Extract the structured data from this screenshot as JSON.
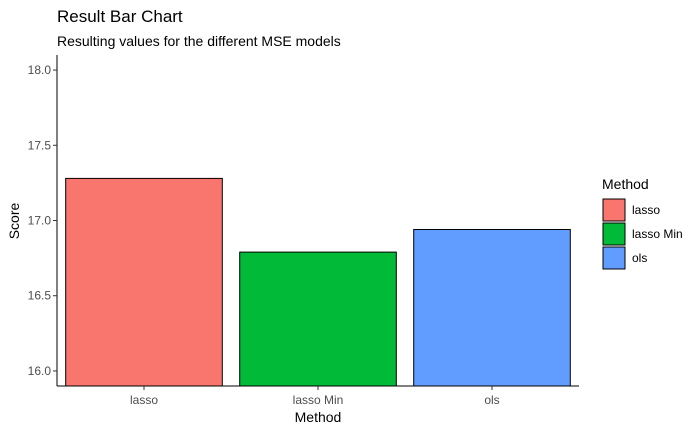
{
  "chart_data": {
    "type": "bar",
    "title": "Result Bar Chart",
    "subtitle": "Resulting values for the different MSE models",
    "xlabel": "Method",
    "ylabel": "Score",
    "categories": [
      "lasso",
      "lasso Min",
      "ols"
    ],
    "values": [
      17.28,
      16.79,
      16.94
    ],
    "colors": [
      "#F8766D",
      "#00BA38",
      "#619CFF"
    ],
    "ylim": [
      15.9,
      18.1
    ],
    "yticks": [
      16.0,
      16.5,
      17.0,
      17.5,
      18.0
    ],
    "ytick_labels": [
      "16.0",
      "16.5",
      "17.0",
      "17.5",
      "18.0"
    ],
    "grid": false,
    "legend": {
      "title": "Method",
      "position": "right",
      "items": [
        "lasso",
        "lasso Min",
        "ols"
      ]
    }
  }
}
